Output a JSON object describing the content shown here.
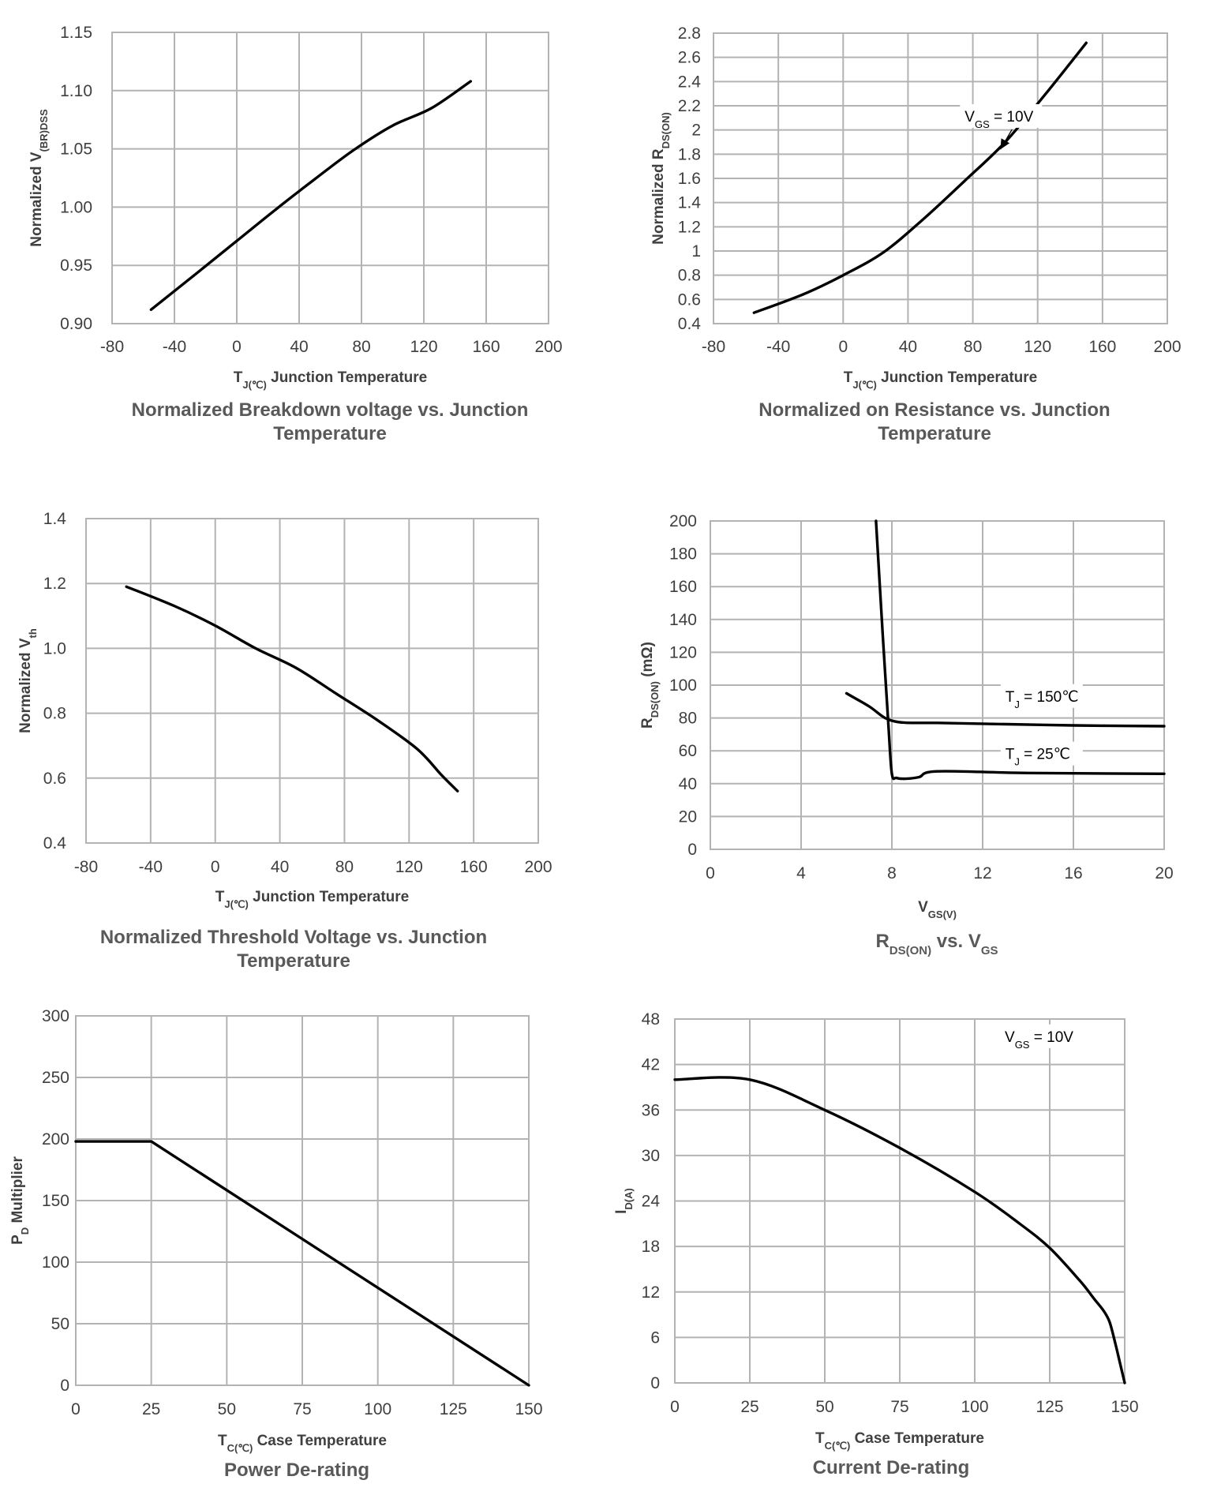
{
  "chart_data": [
    {
      "id": "c1",
      "type": "line",
      "title_lines": [
        "Normalized Breakdown voltage vs. Junction",
        "Temperature"
      ],
      "xlabel": "T_J(℃) Junction Temperature",
      "ylabel": "Normalized V_(BR)DSS",
      "xlim": [
        -80,
        200
      ],
      "ylim": [
        0.9,
        1.15
      ],
      "x_ticks": [
        -80,
        -40,
        0,
        40,
        80,
        120,
        160,
        200
      ],
      "x_tick_labels": [
        "-80",
        "-40",
        "0",
        "40",
        "80",
        "120",
        "160",
        "200"
      ],
      "y_ticks": [
        0.9,
        0.95,
        1.0,
        1.05,
        1.1,
        1.15
      ],
      "y_tick_labels": [
        "0.90",
        "0.95",
        "1.00",
        "1.05",
        "1.10",
        "1.15"
      ],
      "grid": true,
      "series": [
        {
          "x": [
            -55,
            -25,
            0,
            25,
            50,
            75,
            100,
            125,
            150
          ],
          "y": [
            0.912,
            0.944,
            0.971,
            0.998,
            1.024,
            1.049,
            1.07,
            1.085,
            1.108
          ]
        }
      ],
      "annotations": []
    },
    {
      "id": "c2",
      "type": "line",
      "title_lines": [
        "Normalized on Resistance vs. Junction",
        "Temperature"
      ],
      "xlabel": "T_J(℃) Junction Temperature",
      "ylabel": "Normalized R_DS(ON)",
      "xlim": [
        -80,
        200
      ],
      "ylim": [
        0.4,
        2.8
      ],
      "x_ticks": [
        -80,
        -40,
        0,
        40,
        80,
        120,
        160,
        200
      ],
      "x_tick_labels": [
        "-80",
        "-40",
        "0",
        "40",
        "80",
        "120",
        "160",
        "200"
      ],
      "y_ticks": [
        0.4,
        0.6,
        0.8,
        1.0,
        1.2,
        1.4,
        1.6,
        1.8,
        2.0,
        2.2,
        2.4,
        2.6,
        2.8
      ],
      "y_tick_labels": [
        "0.4",
        "0.6",
        "0.8",
        "1",
        "1.2",
        "1.4",
        "1.6",
        "1.8",
        "2",
        "2.2",
        "2.4",
        "2.6",
        "2.8"
      ],
      "grid": true,
      "series": [
        {
          "x": [
            -55,
            -25,
            0,
            25,
            50,
            75,
            100,
            125,
            150
          ],
          "y": [
            0.49,
            0.64,
            0.8,
            0.99,
            1.27,
            1.58,
            1.9,
            2.3,
            2.72
          ]
        }
      ],
      "annotations": [
        {
          "text": "V_GS = 10V",
          "x": 75,
          "y": 2.07,
          "arrow_to": [
            97,
            1.84
          ]
        }
      ]
    },
    {
      "id": "c3",
      "type": "line",
      "title_lines": [
        "Normalized Threshold Voltage vs. Junction",
        "Temperature"
      ],
      "xlabel": "T_J(℃) Junction Temperature",
      "ylabel": "Normalized V_th",
      "xlim": [
        -80,
        200
      ],
      "ylim": [
        0.4,
        1.4
      ],
      "x_ticks": [
        -80,
        -40,
        0,
        40,
        80,
        120,
        160,
        200
      ],
      "x_tick_labels": [
        "-80",
        "-40",
        "0",
        "40",
        "80",
        "120",
        "160",
        "200"
      ],
      "y_ticks": [
        0.4,
        0.6,
        0.8,
        1.0,
        1.2,
        1.4
      ],
      "y_tick_labels": [
        "0.4",
        "0.6",
        "0.8",
        "1.0",
        "1.2",
        "1.4"
      ],
      "grid": true,
      "series": [
        {
          "x": [
            -55,
            -25,
            0,
            25,
            50,
            75,
            100,
            125,
            140,
            150
          ],
          "y": [
            1.19,
            1.13,
            1.07,
            1.0,
            0.94,
            0.86,
            0.78,
            0.69,
            0.61,
            0.56
          ]
        }
      ],
      "annotations": []
    },
    {
      "id": "c4",
      "type": "line",
      "title_lines": [
        "R_DS(ON) vs. V_GS"
      ],
      "xlabel": "V_GS(V)",
      "ylabel": "R_DS(ON) (mΩ)",
      "xlim": [
        0,
        20
      ],
      "ylim": [
        0,
        200
      ],
      "x_ticks": [
        0,
        4,
        8,
        12,
        16,
        20
      ],
      "x_tick_labels": [
        "0",
        "4",
        "8",
        "12",
        "16",
        "20"
      ],
      "y_ticks": [
        0,
        20,
        40,
        60,
        80,
        100,
        120,
        140,
        160,
        180,
        200
      ],
      "y_tick_labels": [
        "0",
        "20",
        "40",
        "60",
        "80",
        "100",
        "120",
        "140",
        "160",
        "180",
        "200"
      ],
      "grid": true,
      "series": [
        {
          "name": "T_J = 150℃",
          "x": [
            6,
            7,
            7.7,
            8.3,
            9,
            10,
            12,
            16,
            20
          ],
          "y": [
            95,
            87,
            80,
            77.5,
            77,
            77,
            76.5,
            75.5,
            75
          ]
        },
        {
          "name": "T_J = 25℃",
          "x": [
            7.3,
            7.6,
            7.85,
            8.0,
            8.2,
            8.6,
            9.2,
            10,
            14,
            20
          ],
          "y": [
            200,
            130,
            75,
            46,
            43.5,
            43,
            44,
            47.5,
            46.5,
            46
          ]
        }
      ],
      "annotations": [
        {
          "text": "T_J = 150℃",
          "x": 13,
          "y": 90
        },
        {
          "text": "T_J = 25℃",
          "x": 13,
          "y": 55
        }
      ]
    },
    {
      "id": "c5",
      "type": "line",
      "title_lines": [
        "Power De-rating"
      ],
      "xlabel": "T_C(℃) Case Temperature",
      "ylabel": "P_D Multiplier",
      "xlim": [
        0,
        150
      ],
      "ylim": [
        0,
        300
      ],
      "x_ticks": [
        0,
        25,
        50,
        75,
        100,
        125,
        150
      ],
      "x_tick_labels": [
        "0",
        "25",
        "50",
        "75",
        "100",
        "125",
        "150"
      ],
      "y_ticks": [
        0,
        50,
        100,
        150,
        200,
        250,
        300
      ],
      "y_tick_labels": [
        "0",
        "50",
        "100",
        "150",
        "200",
        "250",
        "300"
      ],
      "grid": true,
      "series": [
        {
          "x": [
            0,
            25,
            150
          ],
          "y": [
            198,
            198,
            0
          ]
        }
      ],
      "annotations": []
    },
    {
      "id": "c6",
      "type": "line",
      "title_lines": [
        "Current De-rating"
      ],
      "xlabel": "T_C(℃) Case Temperature",
      "ylabel": "I_D(A)",
      "xlim": [
        0,
        150
      ],
      "ylim": [
        0,
        48
      ],
      "x_ticks": [
        0,
        25,
        50,
        75,
        100,
        125,
        150
      ],
      "x_tick_labels": [
        "0",
        "25",
        "50",
        "75",
        "100",
        "125",
        "150"
      ],
      "y_ticks": [
        0,
        6,
        12,
        18,
        24,
        30,
        36,
        42,
        48
      ],
      "y_tick_labels": [
        "0",
        "6",
        "12",
        "18",
        "24",
        "30",
        "36",
        "42",
        "48"
      ],
      "grid": true,
      "series": [
        {
          "x": [
            0,
            25,
            50,
            75,
            100,
            115,
            125,
            135,
            140,
            143,
            145,
            147,
            148.5,
            150
          ],
          "y": [
            40,
            40,
            36,
            31,
            25.2,
            21,
            17.8,
            13.5,
            11,
            9.5,
            8,
            5,
            2.5,
            0
          ]
        }
      ],
      "annotations": [
        {
          "text": "V_GS = 10V",
          "x": 110,
          "y": 45
        }
      ]
    }
  ]
}
